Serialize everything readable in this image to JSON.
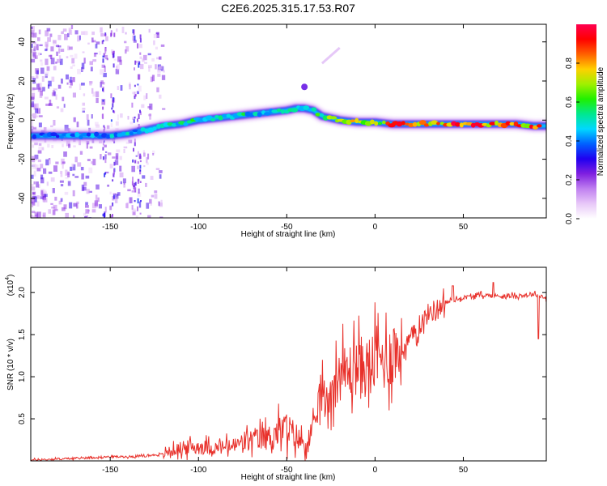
{
  "title": "C2E6.2025.315.17.53.R07",
  "chart_data": [
    {
      "type": "heatmap",
      "xlabel": "Height of straight line (km)",
      "ylabel": "Frequency (Hz)",
      "xlim": [
        -195,
        97
      ],
      "ylim": [
        -50,
        49
      ],
      "x_ticks": [
        -150,
        -100,
        -50,
        0,
        50
      ],
      "x_tick_labels": [
        "-150",
        "-100",
        "-50",
        "0",
        "50"
      ],
      "y_ticks": [
        -40,
        -20,
        0,
        20,
        40
      ],
      "y_tick_labels": [
        "-40",
        "-20",
        "0",
        "20",
        "40"
      ],
      "ridge": {
        "x": [
          -195,
          -180,
          -165,
          -150,
          -140,
          -130,
          -120,
          -110,
          -100,
          -90,
          -80,
          -70,
          -60,
          -50,
          -45,
          -40,
          -35,
          -30,
          -20,
          -10,
          0,
          10,
          20,
          40,
          60,
          80,
          90,
          97
        ],
        "freq": [
          -8,
          -8,
          -8,
          -8,
          -7,
          -5,
          -3,
          -2,
          0,
          1,
          2,
          3,
          4,
          5,
          6,
          6,
          5,
          2,
          0,
          -1,
          -1,
          -2,
          -2,
          -2,
          -2,
          -2,
          -3,
          -3
        ],
        "peak_amplitude": [
          0.4,
          0.45,
          0.45,
          0.5,
          0.5,
          0.55,
          0.55,
          0.6,
          0.6,
          0.55,
          0.6,
          0.55,
          0.5,
          0.55,
          0.6,
          0.6,
          0.6,
          0.65,
          0.75,
          0.8,
          0.85,
          0.9,
          0.95,
          0.95,
          0.95,
          0.95,
          0.9,
          0.85
        ]
      },
      "colorbar": {
        "label": "Normalized spectral amplitude",
        "range": [
          0,
          1
        ],
        "ticks": [
          0.0,
          0.2,
          0.4,
          0.6,
          0.8
        ],
        "tick_labels": [
          "0.0",
          "0.2",
          "0.4",
          "0.6",
          "0.8"
        ],
        "colors": [
          "#ffffff",
          "#e8c8f8",
          "#c080f0",
          "#8020e0",
          "#2000f0",
          "#0060ff",
          "#00d8ff",
          "#00e890",
          "#20f000",
          "#a0f000",
          "#ffd000",
          "#ff6000",
          "#ff0000",
          "#ff0050"
        ]
      }
    },
    {
      "type": "line",
      "xlabel": "Height of straight line (km)",
      "ylabel": "SNR (10 * v/v)",
      "scale_label": "(x10",
      "scale_exp": "4",
      "scale_close": ")",
      "xlim": [
        -195,
        97
      ],
      "ylim": [
        0,
        2.3
      ],
      "x_ticks": [
        -150,
        -100,
        -50,
        0,
        50
      ],
      "x_tick_labels": [
        "-150",
        "-100",
        "-50",
        "0",
        "50"
      ],
      "y_ticks": [
        0.5,
        1.0,
        1.5,
        2.0
      ],
      "y_tick_labels": [
        "0.5",
        "1.0",
        "1.5",
        "2.0"
      ],
      "series": [
        {
          "name": "SNR",
          "color": "#e8302a",
          "x": [
            -195,
            -170,
            -150,
            -140,
            -130,
            -120,
            -110,
            -100,
            -90,
            -80,
            -70,
            -60,
            -55,
            -50,
            -45,
            -40,
            -35,
            -32,
            -30,
            -28,
            -25,
            -20,
            -15,
            -10,
            -5,
            0,
            5,
            10,
            15,
            20,
            25,
            30,
            40,
            50,
            60,
            70,
            80,
            90,
            93,
            95,
            97
          ],
          "y": [
            0.01,
            0.03,
            0.05,
            0.05,
            0.06,
            0.08,
            0.15,
            0.17,
            0.15,
            0.18,
            0.25,
            0.28,
            0.35,
            0.38,
            0.3,
            0.2,
            0.32,
            0.7,
            0.95,
            0.65,
            0.85,
            1.05,
            1.05,
            1.15,
            1.1,
            1.2,
            1.2,
            1.3,
            1.3,
            1.45,
            1.6,
            1.75,
            1.88,
            1.94,
            1.97,
            1.96,
            1.96,
            1.98,
            1.97,
            1.95,
            1.92
          ]
        }
      ]
    }
  ]
}
